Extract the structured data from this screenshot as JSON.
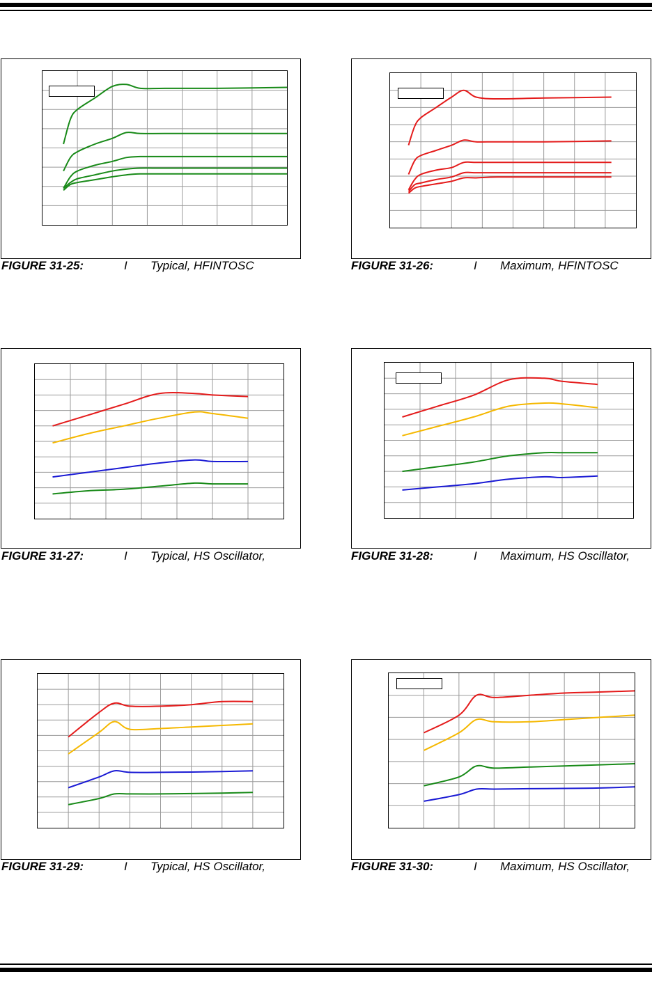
{
  "page": {
    "top_rules": [
      "thick",
      "thin"
    ],
    "bottom_rules": [
      "thin",
      "thick"
    ]
  },
  "figures": [
    {
      "id": "fig25",
      "caption": {
        "number": "FIGURE 31-25:",
        "symbol": "I",
        "description": "Typical, HFINTOSC"
      },
      "has_legend_box": true,
      "chart_data": {
        "type": "line",
        "title": "",
        "xlabel": "",
        "ylabel": "",
        "xlim": [
          0,
          7
        ],
        "ylim": [
          0,
          8
        ],
        "grid": true,
        "series": [
          {
            "color": "#188a18",
            "x": [
              0.6,
              0.8,
              1.0,
              1.5,
              2.0,
              2.4,
              2.8,
              3.5,
              5.0,
              7.0
            ],
            "y": [
              4.2,
              5.5,
              6.0,
              6.6,
              7.2,
              7.3,
              7.1,
              7.1,
              7.1,
              7.15
            ]
          },
          {
            "color": "#188a18",
            "x": [
              0.6,
              0.8,
              1.0,
              1.5,
              2.0,
              2.4,
              2.8,
              3.5,
              5.0,
              7.0
            ],
            "y": [
              2.8,
              3.5,
              3.8,
              4.2,
              4.5,
              4.8,
              4.75,
              4.75,
              4.75,
              4.75
            ]
          },
          {
            "color": "#188a18",
            "x": [
              0.6,
              0.8,
              1.0,
              1.5,
              2.0,
              2.4,
              2.8,
              3.5,
              5.0,
              7.0
            ],
            "y": [
              1.9,
              2.5,
              2.8,
              3.1,
              3.3,
              3.5,
              3.55,
              3.55,
              3.55,
              3.55
            ]
          },
          {
            "color": "#188a18",
            "x": [
              0.6,
              0.8,
              1.0,
              1.5,
              2.0,
              2.4,
              2.8,
              3.5,
              5.0,
              7.0
            ],
            "y": [
              1.9,
              2.2,
              2.4,
              2.6,
              2.8,
              2.9,
              2.95,
              2.95,
              2.95,
              2.95
            ]
          },
          {
            "color": "#188a18",
            "x": [
              0.6,
              0.8,
              1.0,
              1.5,
              2.0,
              2.4,
              2.8,
              3.5,
              5.0,
              7.0
            ],
            "y": [
              1.8,
              2.1,
              2.2,
              2.35,
              2.5,
              2.6,
              2.65,
              2.65,
              2.65,
              2.65
            ]
          }
        ]
      }
    },
    {
      "id": "fig26",
      "caption": {
        "number": "FIGURE 31-26:",
        "symbol": "I",
        "description": "Maximum, HFINTOSC"
      },
      "has_legend_box": true,
      "chart_data": {
        "type": "line",
        "title": "",
        "xlabel": "",
        "ylabel": "",
        "xlim": [
          0,
          8
        ],
        "ylim": [
          0,
          9
        ],
        "grid": true,
        "series": [
          {
            "color": "#e41b1b",
            "x": [
              0.6,
              0.8,
              1.0,
              1.5,
              2.0,
              2.4,
              2.8,
              3.5,
              5.0,
              7.2
            ],
            "y": [
              4.8,
              5.9,
              6.4,
              7.0,
              7.6,
              8.0,
              7.6,
              7.5,
              7.55,
              7.6
            ]
          },
          {
            "color": "#e41b1b",
            "x": [
              0.6,
              0.8,
              1.0,
              1.5,
              2.0,
              2.4,
              2.8,
              3.5,
              5.0,
              7.2
            ],
            "y": [
              3.1,
              3.9,
              4.2,
              4.5,
              4.8,
              5.1,
              5.0,
              5.0,
              5.0,
              5.05
            ]
          },
          {
            "color": "#e41b1b",
            "x": [
              0.6,
              0.8,
              1.0,
              1.5,
              2.0,
              2.4,
              2.8,
              3.5,
              5.0,
              7.2
            ],
            "y": [
              2.2,
              2.8,
              3.1,
              3.35,
              3.5,
              3.8,
              3.8,
              3.8,
              3.8,
              3.8
            ]
          },
          {
            "color": "#e41b1b",
            "x": [
              0.6,
              0.8,
              1.0,
              1.5,
              2.0,
              2.4,
              2.8,
              3.5,
              5.0,
              7.2
            ],
            "y": [
              2.1,
              2.5,
              2.6,
              2.8,
              2.95,
              3.2,
              3.2,
              3.2,
              3.2,
              3.2
            ]
          },
          {
            "color": "#e41b1b",
            "x": [
              0.6,
              0.8,
              1.0,
              1.5,
              2.0,
              2.4,
              2.8,
              3.5,
              5.0,
              7.2
            ],
            "y": [
              2.0,
              2.3,
              2.4,
              2.55,
              2.7,
              2.9,
              2.9,
              2.95,
              2.95,
              2.95
            ]
          }
        ]
      }
    },
    {
      "id": "fig27",
      "caption": {
        "number": "FIGURE 31-27:",
        "symbol": "I",
        "description": "Typical, HS Oscillator,"
      },
      "has_legend_box": false,
      "chart_data": {
        "type": "line",
        "title": "",
        "xlabel": "",
        "ylabel": "",
        "xlim": [
          0,
          7
        ],
        "ylim": [
          0,
          10
        ],
        "grid": true,
        "series": [
          {
            "color": "#e41b1b",
            "x": [
              0.5,
              1.5,
              2.5,
              3.5,
              4.5,
              5.0,
              6.0
            ],
            "y": [
              6.0,
              6.7,
              7.4,
              8.1,
              8.1,
              8.0,
              7.9
            ]
          },
          {
            "color": "#f5b800",
            "x": [
              0.5,
              1.5,
              2.5,
              3.5,
              4.5,
              5.0,
              6.0
            ],
            "y": [
              4.9,
              5.5,
              6.0,
              6.5,
              6.9,
              6.8,
              6.5
            ]
          },
          {
            "color": "#1a1ad4",
            "x": [
              0.5,
              1.5,
              2.5,
              3.5,
              4.5,
              5.0,
              6.0
            ],
            "y": [
              2.7,
              3.0,
              3.3,
              3.6,
              3.8,
              3.7,
              3.7
            ]
          },
          {
            "color": "#188a18",
            "x": [
              0.5,
              1.5,
              2.5,
              3.5,
              4.5,
              5.0,
              6.0
            ],
            "y": [
              1.6,
              1.8,
              1.9,
              2.1,
              2.3,
              2.25,
              2.25
            ]
          }
        ]
      }
    },
    {
      "id": "fig28",
      "caption": {
        "number": "FIGURE 31-28:",
        "symbol": "I",
        "description": "Maximum, HS Oscillator,"
      },
      "has_legend_box": true,
      "chart_data": {
        "type": "line",
        "title": "",
        "xlabel": "",
        "ylabel": "",
        "xlim": [
          0,
          7
        ],
        "ylim": [
          0,
          10
        ],
        "grid": true,
        "series": [
          {
            "color": "#e41b1b",
            "x": [
              0.5,
              1.5,
              2.5,
              3.5,
              4.5,
              5.0,
              6.0
            ],
            "y": [
              6.5,
              7.2,
              7.9,
              8.9,
              9.0,
              8.8,
              8.6
            ]
          },
          {
            "color": "#f5b800",
            "x": [
              0.5,
              1.5,
              2.5,
              3.5,
              4.5,
              5.0,
              6.0
            ],
            "y": [
              5.3,
              5.9,
              6.5,
              7.2,
              7.4,
              7.35,
              7.1
            ]
          },
          {
            "color": "#188a18",
            "x": [
              0.5,
              1.5,
              2.5,
              3.5,
              4.5,
              5.0,
              6.0
            ],
            "y": [
              3.0,
              3.3,
              3.6,
              4.0,
              4.2,
              4.2,
              4.2
            ]
          },
          {
            "color": "#1a1ad4",
            "x": [
              0.5,
              1.5,
              2.5,
              3.5,
              4.5,
              5.0,
              6.0
            ],
            "y": [
              1.8,
              2.0,
              2.2,
              2.5,
              2.65,
              2.6,
              2.7
            ]
          }
        ]
      }
    },
    {
      "id": "fig29",
      "caption": {
        "number": "FIGURE 31-29:",
        "symbol": "I",
        "description": "Typical, HS Oscillator,"
      },
      "has_legend_box": false,
      "chart_data": {
        "type": "line",
        "title": "",
        "xlabel": "",
        "ylabel": "",
        "xlim": [
          0,
          8
        ],
        "ylim": [
          0,
          10
        ],
        "grid": true,
        "series": [
          {
            "color": "#e41b1b",
            "x": [
              1.0,
              2.0,
              2.5,
              3.0,
              4.0,
              5.0,
              6.0,
              7.0
            ],
            "y": [
              5.9,
              7.5,
              8.1,
              7.9,
              7.9,
              8.0,
              8.2,
              8.2
            ]
          },
          {
            "color": "#f5b800",
            "x": [
              1.0,
              2.0,
              2.5,
              3.0,
              4.0,
              5.0,
              6.0,
              7.0
            ],
            "y": [
              4.8,
              6.2,
              6.9,
              6.4,
              6.45,
              6.55,
              6.65,
              6.75
            ]
          },
          {
            "color": "#1a1ad4",
            "x": [
              1.0,
              2.0,
              2.5,
              3.0,
              4.0,
              5.0,
              6.0,
              7.0
            ],
            "y": [
              2.6,
              3.3,
              3.7,
              3.6,
              3.6,
              3.62,
              3.65,
              3.7
            ]
          },
          {
            "color": "#188a18",
            "x": [
              1.0,
              2.0,
              2.5,
              3.0,
              4.0,
              5.0,
              6.0,
              7.0
            ],
            "y": [
              1.5,
              1.9,
              2.2,
              2.2,
              2.2,
              2.22,
              2.25,
              2.3
            ]
          }
        ]
      }
    },
    {
      "id": "fig30",
      "caption": {
        "number": "FIGURE 31-30:",
        "symbol": "I",
        "description": "Maximum, HS Oscillator,"
      },
      "has_legend_box": true,
      "chart_data": {
        "type": "line",
        "title": "",
        "xlabel": "",
        "ylabel": "",
        "xlim": [
          0,
          7
        ],
        "ylim": [
          0,
          7
        ],
        "grid": true,
        "series": [
          {
            "color": "#e41b1b",
            "x": [
              1.0,
              2.0,
              2.5,
              3.0,
              4.0,
              5.0,
              6.0,
              7.0
            ],
            "y": [
              4.3,
              5.1,
              6.0,
              5.9,
              6.0,
              6.1,
              6.15,
              6.2
            ]
          },
          {
            "color": "#f5b800",
            "x": [
              1.0,
              2.0,
              2.5,
              3.0,
              4.0,
              5.0,
              6.0,
              7.0
            ],
            "y": [
              3.5,
              4.3,
              4.9,
              4.8,
              4.8,
              4.9,
              5.0,
              5.1
            ]
          },
          {
            "color": "#188a18",
            "x": [
              1.0,
              2.0,
              2.5,
              3.0,
              4.0,
              5.0,
              6.0,
              7.0
            ],
            "y": [
              1.9,
              2.3,
              2.8,
              2.7,
              2.75,
              2.8,
              2.85,
              2.9
            ]
          },
          {
            "color": "#1a1ad4",
            "x": [
              1.0,
              2.0,
              2.5,
              3.0,
              4.0,
              5.0,
              6.0,
              7.0
            ],
            "y": [
              1.2,
              1.5,
              1.75,
              1.75,
              1.77,
              1.78,
              1.8,
              1.85
            ]
          }
        ]
      }
    }
  ]
}
